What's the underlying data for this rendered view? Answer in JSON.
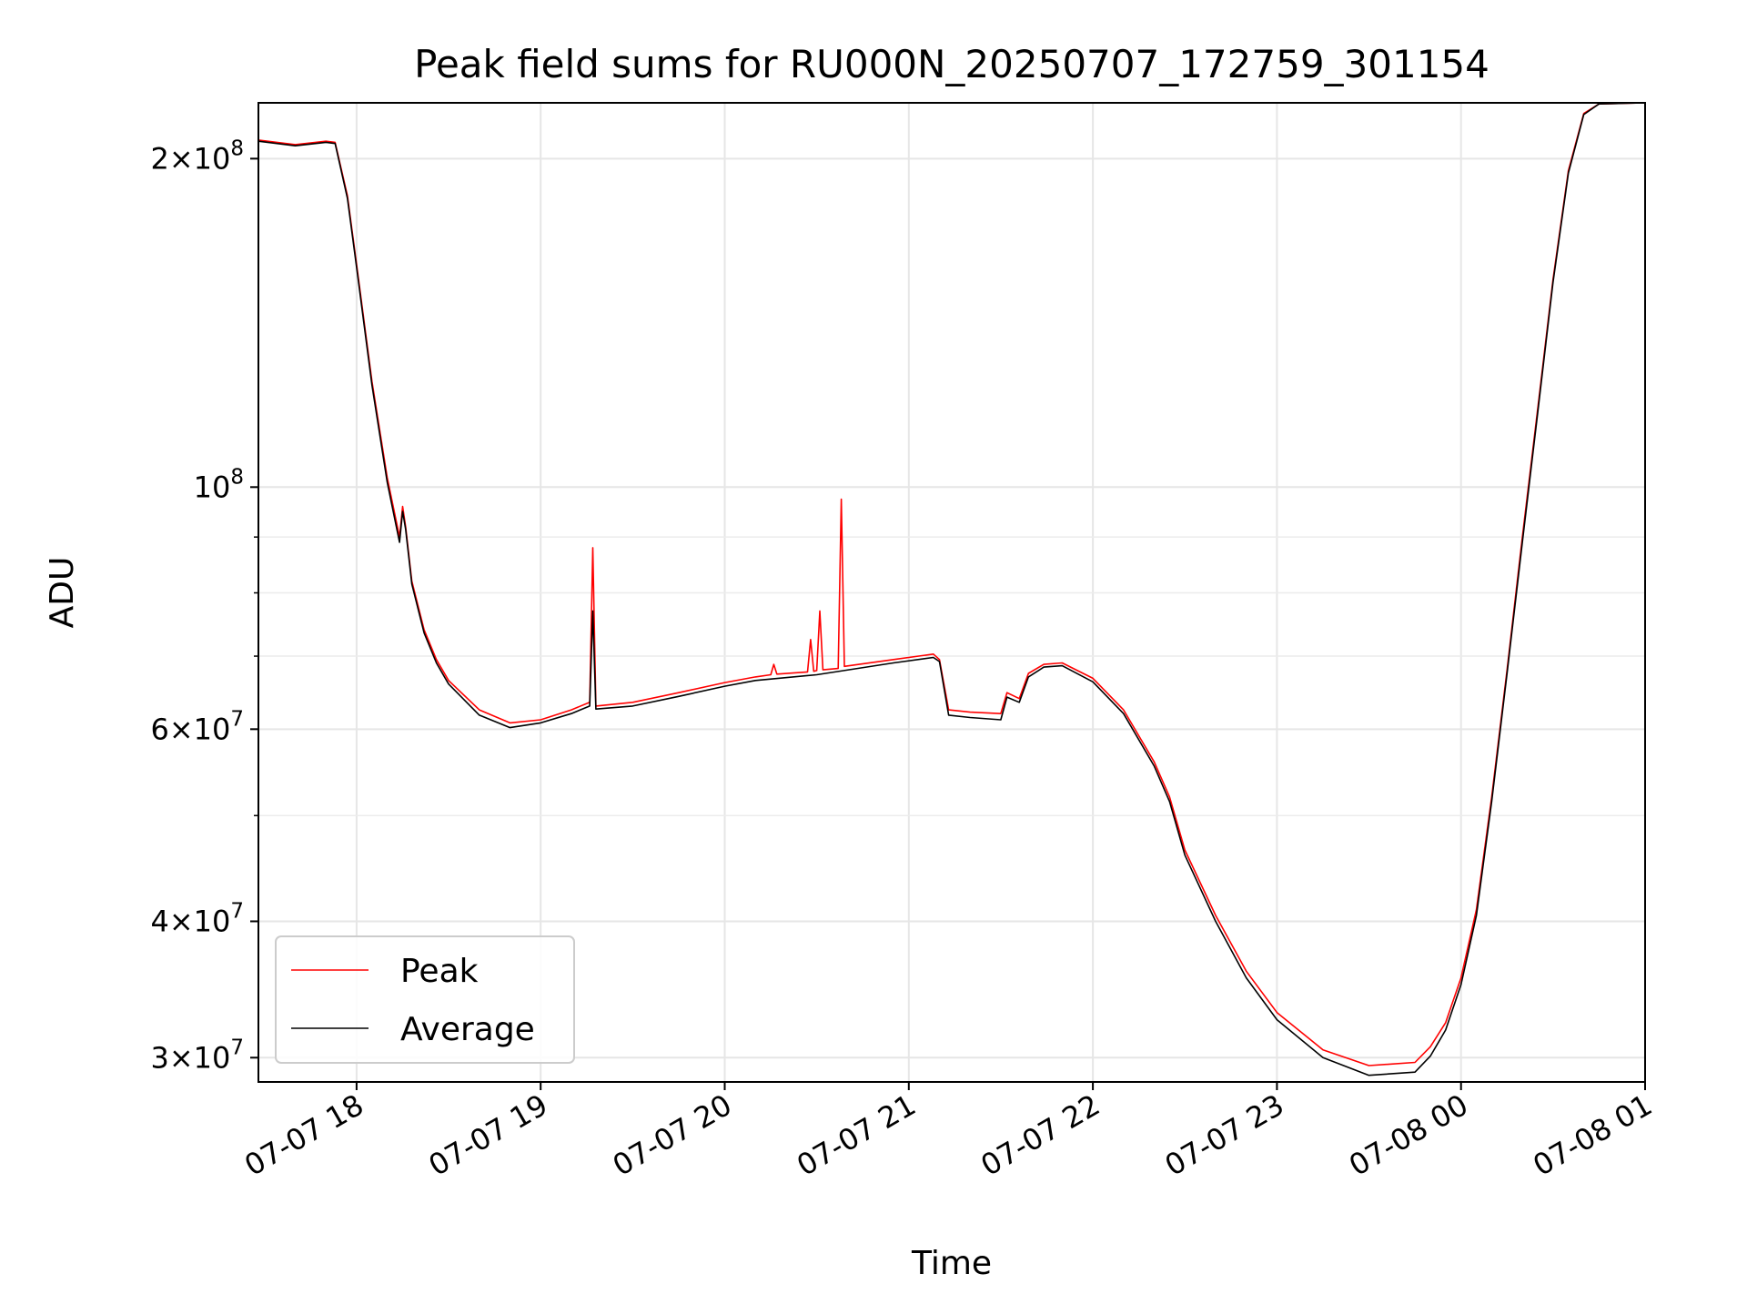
{
  "chart_data": {
    "type": "line",
    "title": "Peak field sums for RU000N_20250707_172759_301154",
    "xlabel": "Time",
    "ylabel": "ADU",
    "yscale": "log",
    "grid": true,
    "legend_position": "lower-left",
    "x_ticks": [
      "07-07 18",
      "07-07 19",
      "07-07 20",
      "07-07 21",
      "07-07 22",
      "07-07 23",
      "07-08 00",
      "07-08 01"
    ],
    "xlim": [
      "2025-07-07 17:28",
      "2025-07-08 01:00"
    ],
    "ylim": [
      28500000,
      225000000
    ],
    "y_ticks": [
      {
        "value": 30000000,
        "mantissa": "3",
        "exp": "7"
      },
      {
        "value": 40000000,
        "mantissa": "4",
        "exp": "7"
      },
      {
        "value": 60000000,
        "mantissa": "6",
        "exp": "7"
      },
      {
        "value": 100000000,
        "mantissa": "",
        "exp": "8"
      },
      {
        "value": 200000000,
        "mantissa": "2",
        "exp": "8"
      }
    ],
    "colors": {
      "peak": "#ff0000",
      "average": "#000000"
    },
    "series": [
      {
        "name": "Peak",
        "color": "#ff0000",
        "points": [
          [
            "2025-07-07 17:28",
            208000000
          ],
          [
            "2025-07-07 17:40",
            206000000
          ],
          [
            "2025-07-07 17:50",
            207500000
          ],
          [
            "2025-07-07 17:53",
            207000000
          ],
          [
            "2025-07-07 17:57",
            185000000
          ],
          [
            "2025-07-07 18:00",
            160000000
          ],
          [
            "2025-07-07 18:05",
            125000000
          ],
          [
            "2025-07-07 18:10",
            102000000
          ],
          [
            "2025-07-07 18:14",
            90000000
          ],
          [
            "2025-07-07 18:15",
            96000000
          ],
          [
            "2025-07-07 18:16",
            92000000
          ],
          [
            "2025-07-07 18:18",
            82000000
          ],
          [
            "2025-07-07 18:22",
            74000000
          ],
          [
            "2025-07-07 18:26",
            69500000
          ],
          [
            "2025-07-07 18:30",
            66500000
          ],
          [
            "2025-07-07 18:40",
            62500000
          ],
          [
            "2025-07-07 18:50",
            60800000
          ],
          [
            "2025-07-07 19:00",
            61200000
          ],
          [
            "2025-07-07 19:10",
            62500000
          ],
          [
            "2025-07-07 19:16",
            63500000
          ],
          [
            "2025-07-07 19:17",
            88000000
          ],
          [
            "2025-07-07 19:18",
            63000000
          ],
          [
            "2025-07-07 19:30",
            63500000
          ],
          [
            "2025-07-07 19:45",
            64800000
          ],
          [
            "2025-07-07 20:00",
            66200000
          ],
          [
            "2025-07-07 20:10",
            67000000
          ],
          [
            "2025-07-07 20:15",
            67300000
          ],
          [
            "2025-07-07 20:16",
            68800000
          ],
          [
            "2025-07-07 20:17",
            67400000
          ],
          [
            "2025-07-07 20:27",
            67700000
          ],
          [
            "2025-07-07 20:28",
            72500000
          ],
          [
            "2025-07-07 20:29",
            67800000
          ],
          [
            "2025-07-07 20:30",
            67900000
          ],
          [
            "2025-07-07 20:31",
            77000000
          ],
          [
            "2025-07-07 20:32",
            68000000
          ],
          [
            "2025-07-07 20:37",
            68200000
          ],
          [
            "2025-07-07 20:38",
            97500000
          ],
          [
            "2025-07-07 20:39",
            68500000
          ],
          [
            "2025-07-07 20:55",
            69500000
          ],
          [
            "2025-07-07 21:08",
            70300000
          ],
          [
            "2025-07-07 21:10",
            69500000
          ],
          [
            "2025-07-07 21:13",
            62500000
          ],
          [
            "2025-07-07 21:20",
            62200000
          ],
          [
            "2025-07-07 21:30",
            62000000
          ],
          [
            "2025-07-07 21:32",
            64800000
          ],
          [
            "2025-07-07 21:36",
            64000000
          ],
          [
            "2025-07-07 21:39",
            67500000
          ],
          [
            "2025-07-07 21:44",
            68800000
          ],
          [
            "2025-07-07 21:50",
            69000000
          ],
          [
            "2025-07-07 22:00",
            66800000
          ],
          [
            "2025-07-07 22:10",
            62500000
          ],
          [
            "2025-07-07 22:20",
            56000000
          ],
          [
            "2025-07-07 22:25",
            52000000
          ],
          [
            "2025-07-07 22:30",
            46500000
          ],
          [
            "2025-07-07 22:40",
            40500000
          ],
          [
            "2025-07-07 22:50",
            36000000
          ],
          [
            "2025-07-07 23:00",
            33000000
          ],
          [
            "2025-07-07 23:15",
            30500000
          ],
          [
            "2025-07-07 23:30",
            29500000
          ],
          [
            "2025-07-07 23:45",
            29700000
          ],
          [
            "2025-07-07 23:50",
            30700000
          ],
          [
            "2025-07-07 23:55",
            32300000
          ],
          [
            "2025-07-08 00:00",
            35500000
          ],
          [
            "2025-07-08 00:05",
            41000000
          ],
          [
            "2025-07-08 00:10",
            52000000
          ],
          [
            "2025-07-08 00:15",
            68000000
          ],
          [
            "2025-07-08 00:20",
            90000000
          ],
          [
            "2025-07-08 00:25",
            118000000
          ],
          [
            "2025-07-08 00:30",
            155000000
          ],
          [
            "2025-07-08 00:35",
            195000000
          ],
          [
            "2025-07-08 00:40",
            220000000
          ],
          [
            "2025-07-08 00:45",
            224500000
          ],
          [
            "2025-07-08 01:00",
            225000000
          ]
        ]
      },
      {
        "name": "Average",
        "color": "#000000",
        "points": [
          [
            "2025-07-07 17:28",
            207500000
          ],
          [
            "2025-07-07 17:40",
            205500000
          ],
          [
            "2025-07-07 17:50",
            207000000
          ],
          [
            "2025-07-07 17:53",
            206500000
          ],
          [
            "2025-07-07 17:57",
            184000000
          ],
          [
            "2025-07-07 18:00",
            159000000
          ],
          [
            "2025-07-07 18:05",
            124000000
          ],
          [
            "2025-07-07 18:10",
            101000000
          ],
          [
            "2025-07-07 18:14",
            89000000
          ],
          [
            "2025-07-07 18:15",
            95000000
          ],
          [
            "2025-07-07 18:16",
            91500000
          ],
          [
            "2025-07-07 18:18",
            81500000
          ],
          [
            "2025-07-07 18:22",
            73500000
          ],
          [
            "2025-07-07 18:26",
            69000000
          ],
          [
            "2025-07-07 18:30",
            66000000
          ],
          [
            "2025-07-07 18:40",
            61800000
          ],
          [
            "2025-07-07 18:50",
            60200000
          ],
          [
            "2025-07-07 19:00",
            60800000
          ],
          [
            "2025-07-07 19:10",
            62000000
          ],
          [
            "2025-07-07 19:16",
            63000000
          ],
          [
            "2025-07-07 19:17",
            77000000
          ],
          [
            "2025-07-07 19:18",
            62600000
          ],
          [
            "2025-07-07 19:30",
            63000000
          ],
          [
            "2025-07-07 19:45",
            64300000
          ],
          [
            "2025-07-07 20:00",
            65700000
          ],
          [
            "2025-07-07 20:10",
            66500000
          ],
          [
            "2025-07-07 20:30",
            67300000
          ],
          [
            "2025-07-07 20:55",
            69000000
          ],
          [
            "2025-07-07 21:08",
            69800000
          ],
          [
            "2025-07-07 21:10",
            69200000
          ],
          [
            "2025-07-07 21:13",
            61800000
          ],
          [
            "2025-07-07 21:20",
            61500000
          ],
          [
            "2025-07-07 21:30",
            61200000
          ],
          [
            "2025-07-07 21:32",
            64200000
          ],
          [
            "2025-07-07 21:36",
            63500000
          ],
          [
            "2025-07-07 21:39",
            67000000
          ],
          [
            "2025-07-07 21:44",
            68400000
          ],
          [
            "2025-07-07 21:50",
            68600000
          ],
          [
            "2025-07-07 22:00",
            66300000
          ],
          [
            "2025-07-07 22:10",
            62000000
          ],
          [
            "2025-07-07 22:20",
            55500000
          ],
          [
            "2025-07-07 22:25",
            51500000
          ],
          [
            "2025-07-07 22:30",
            46000000
          ],
          [
            "2025-07-07 22:40",
            40000000
          ],
          [
            "2025-07-07 22:50",
            35500000
          ],
          [
            "2025-07-07 23:00",
            32500000
          ],
          [
            "2025-07-07 23:15",
            30000000
          ],
          [
            "2025-07-07 23:30",
            28900000
          ],
          [
            "2025-07-07 23:45",
            29100000
          ],
          [
            "2025-07-07 23:50",
            30100000
          ],
          [
            "2025-07-07 23:55",
            31800000
          ],
          [
            "2025-07-08 00:00",
            35000000
          ],
          [
            "2025-07-08 00:05",
            40500000
          ],
          [
            "2025-07-08 00:10",
            51500000
          ],
          [
            "2025-07-08 00:15",
            67500000
          ],
          [
            "2025-07-08 00:20",
            89000000
          ],
          [
            "2025-07-08 00:25",
            117000000
          ],
          [
            "2025-07-08 00:30",
            154000000
          ],
          [
            "2025-07-08 00:35",
            194000000
          ],
          [
            "2025-07-08 00:40",
            219500000
          ],
          [
            "2025-07-08 00:45",
            224500000
          ],
          [
            "2025-07-08 01:00",
            225000000
          ]
        ]
      }
    ]
  }
}
